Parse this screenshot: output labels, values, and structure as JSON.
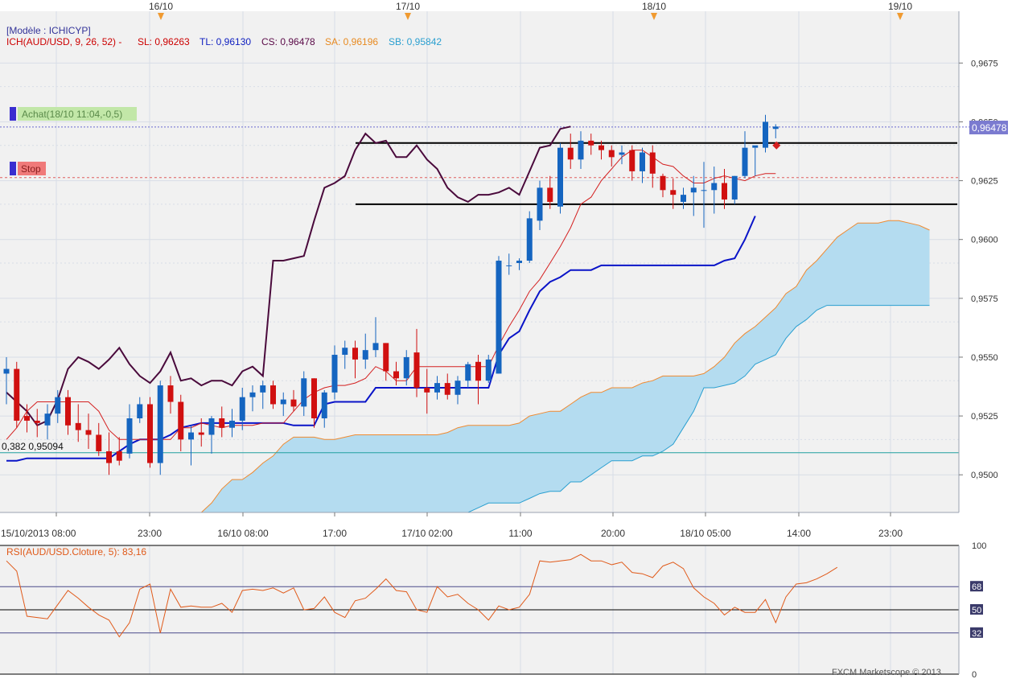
{
  "colors": {
    "background": "#f1f1f1",
    "grid": "#d8dde6",
    "up_candle": "#1565c0",
    "down_candle": "#d01010",
    "chikou": "#4a0a3c",
    "tenkan": "#d42020",
    "kijun": "#0a14c8",
    "senkou_a": "#f08a30",
    "senkou_b": "#2a9fd0",
    "cloud_fill": "#b4dcf0",
    "rsi_line": "#e05a1a",
    "fibo_line": "#20a0a0",
    "price_tag_bg": "#7b7bd0"
  },
  "header": {
    "model_label": "[Modèle : ICHICYP]",
    "ich_label": "ICH(AUD/USD, 9, 26, 52) -",
    "sl_label": "SL: 0,96263",
    "tl_label": "TL: 0,96130",
    "cs_label": "CS: 0,96478",
    "sa_label": "SA: 0,96196",
    "sb_label": "SB: 0,95842"
  },
  "orders": {
    "buy_label": "Achat(18/10 11:04,-0,5)",
    "stop_label": "Stop"
  },
  "fibo_label": "0,382 0,95094",
  "current_price_label": "0,96478",
  "top_dates": [
    "16/10",
    "17/10",
    "18/10",
    "19/10"
  ],
  "rsi_label": "RSI(AUD/USD.Cloture, 5): 83,16",
  "footer": "FXCM Marketscope © 2013",
  "chart_data": [
    {
      "type": "candlestick",
      "title": "ICH(AUD/USD, 9, 26, 52)",
      "x_tick_labels": [
        "15/10/2013 08:00",
        "23:00",
        "16/10 08:00",
        "17:00",
        "17/10 02:00",
        "11:00",
        "20:00",
        "18/10 05:00",
        "14:00",
        "23:00"
      ],
      "y_tick_labels": [
        "0,9675",
        "0,9650",
        "0,9625",
        "0,9600",
        "0,9575",
        "0,9550",
        "0,9525",
        "0,9500"
      ],
      "ylim": [
        0.9484,
        0.9697
      ],
      "candles": [
        {
          "o": 0.9543,
          "h": 0.955,
          "l": 0.953,
          "c": 0.9545
        },
        {
          "o": 0.9545,
          "h": 0.9548,
          "l": 0.952,
          "c": 0.9523
        },
        {
          "o": 0.9525,
          "h": 0.953,
          "l": 0.9518,
          "c": 0.9523
        },
        {
          "o": 0.9523,
          "h": 0.9528,
          "l": 0.9516,
          "c": 0.9522
        },
        {
          "o": 0.9521,
          "h": 0.953,
          "l": 0.9515,
          "c": 0.9526
        },
        {
          "o": 0.9526,
          "h": 0.9536,
          "l": 0.9522,
          "c": 0.9533
        },
        {
          "o": 0.9533,
          "h": 0.9536,
          "l": 0.9517,
          "c": 0.9521
        },
        {
          "o": 0.9522,
          "h": 0.953,
          "l": 0.9514,
          "c": 0.9519
        },
        {
          "o": 0.9519,
          "h": 0.9526,
          "l": 0.9511,
          "c": 0.9517
        },
        {
          "o": 0.9517,
          "h": 0.9522,
          "l": 0.9508,
          "c": 0.951
        },
        {
          "o": 0.951,
          "h": 0.9518,
          "l": 0.95,
          "c": 0.9505
        },
        {
          "o": 0.951,
          "h": 0.9516,
          "l": 0.9504,
          "c": 0.9506
        },
        {
          "o": 0.9509,
          "h": 0.953,
          "l": 0.9507,
          "c": 0.9524
        },
        {
          "o": 0.9524,
          "h": 0.9533,
          "l": 0.9522,
          "c": 0.953
        },
        {
          "o": 0.953,
          "h": 0.9533,
          "l": 0.9503,
          "c": 0.9505
        },
        {
          "o": 0.9505,
          "h": 0.954,
          "l": 0.95,
          "c": 0.9538
        },
        {
          "o": 0.9538,
          "h": 0.9542,
          "l": 0.9526,
          "c": 0.9531
        },
        {
          "o": 0.9531,
          "h": 0.9534,
          "l": 0.951,
          "c": 0.9515
        },
        {
          "o": 0.9515,
          "h": 0.9521,
          "l": 0.9504,
          "c": 0.9518
        },
        {
          "o": 0.9518,
          "h": 0.9524,
          "l": 0.9512,
          "c": 0.9517
        },
        {
          "o": 0.9517,
          "h": 0.9525,
          "l": 0.9509,
          "c": 0.9524
        },
        {
          "o": 0.9524,
          "h": 0.9529,
          "l": 0.9516,
          "c": 0.952
        },
        {
          "o": 0.952,
          "h": 0.9528,
          "l": 0.9516,
          "c": 0.9523
        },
        {
          "o": 0.9523,
          "h": 0.9537,
          "l": 0.9519,
          "c": 0.9533
        },
        {
          "o": 0.9533,
          "h": 0.9538,
          "l": 0.9527,
          "c": 0.9535
        },
        {
          "o": 0.9535,
          "h": 0.954,
          "l": 0.9528,
          "c": 0.9538
        },
        {
          "o": 0.9538,
          "h": 0.954,
          "l": 0.9528,
          "c": 0.953
        },
        {
          "o": 0.953,
          "h": 0.9535,
          "l": 0.9525,
          "c": 0.9532
        },
        {
          "o": 0.9532,
          "h": 0.9536,
          "l": 0.9527,
          "c": 0.9529
        },
        {
          "o": 0.9529,
          "h": 0.9544,
          "l": 0.9525,
          "c": 0.9541
        },
        {
          "o": 0.9541,
          "h": 0.9541,
          "l": 0.952,
          "c": 0.9524
        },
        {
          "o": 0.9524,
          "h": 0.9536,
          "l": 0.952,
          "c": 0.9535
        },
        {
          "o": 0.9535,
          "h": 0.9555,
          "l": 0.9532,
          "c": 0.9551
        },
        {
          "o": 0.9551,
          "h": 0.9557,
          "l": 0.9545,
          "c": 0.9554
        },
        {
          "o": 0.9554,
          "h": 0.9557,
          "l": 0.9541,
          "c": 0.9549
        },
        {
          "o": 0.9549,
          "h": 0.956,
          "l": 0.9545,
          "c": 0.9553
        },
        {
          "o": 0.9553,
          "h": 0.9567,
          "l": 0.955,
          "c": 0.9556
        },
        {
          "o": 0.9556,
          "h": 0.9556,
          "l": 0.954,
          "c": 0.9544
        },
        {
          "o": 0.9544,
          "h": 0.9548,
          "l": 0.9538,
          "c": 0.9541
        },
        {
          "o": 0.9541,
          "h": 0.9553,
          "l": 0.9538,
          "c": 0.955
        },
        {
          "o": 0.9552,
          "h": 0.9562,
          "l": 0.9533,
          "c": 0.9537
        },
        {
          "o": 0.9537,
          "h": 0.9545,
          "l": 0.9526,
          "c": 0.9535
        },
        {
          "o": 0.9535,
          "h": 0.9542,
          "l": 0.9532,
          "c": 0.9539
        },
        {
          "o": 0.9539,
          "h": 0.9543,
          "l": 0.9532,
          "c": 0.9534
        },
        {
          "o": 0.9534,
          "h": 0.9542,
          "l": 0.953,
          "c": 0.954
        },
        {
          "o": 0.954,
          "h": 0.9548,
          "l": 0.9537,
          "c": 0.9547
        },
        {
          "o": 0.9548,
          "h": 0.9551,
          "l": 0.953,
          "c": 0.954
        },
        {
          "o": 0.954,
          "h": 0.9551,
          "l": 0.9539,
          "c": 0.9549
        },
        {
          "o": 0.9543,
          "h": 0.9593,
          "l": 0.9543,
          "c": 0.9591
        },
        {
          "o": 0.9589,
          "h": 0.9594,
          "l": 0.9585,
          "c": 0.9589
        },
        {
          "o": 0.959,
          "h": 0.9592,
          "l": 0.9587,
          "c": 0.9591
        },
        {
          "o": 0.9591,
          "h": 0.9612,
          "l": 0.959,
          "c": 0.9609
        },
        {
          "o": 0.9608,
          "h": 0.9625,
          "l": 0.9604,
          "c": 0.9622
        },
        {
          "o": 0.9622,
          "h": 0.9627,
          "l": 0.9613,
          "c": 0.9616
        },
        {
          "o": 0.9614,
          "h": 0.9641,
          "l": 0.9611,
          "c": 0.9639
        },
        {
          "o": 0.9639,
          "h": 0.9645,
          "l": 0.963,
          "c": 0.9634
        },
        {
          "o": 0.9634,
          "h": 0.9646,
          "l": 0.963,
          "c": 0.9642
        },
        {
          "o": 0.9642,
          "h": 0.9645,
          "l": 0.9636,
          "c": 0.964
        },
        {
          "o": 0.964,
          "h": 0.9642,
          "l": 0.9634,
          "c": 0.9638
        },
        {
          "o": 0.9638,
          "h": 0.964,
          "l": 0.9631,
          "c": 0.9635
        },
        {
          "o": 0.9636,
          "h": 0.964,
          "l": 0.9632,
          "c": 0.9637
        },
        {
          "o": 0.9638,
          "h": 0.964,
          "l": 0.9625,
          "c": 0.9629
        },
        {
          "o": 0.9629,
          "h": 0.9639,
          "l": 0.9624,
          "c": 0.9637
        },
        {
          "o": 0.9637,
          "h": 0.964,
          "l": 0.9622,
          "c": 0.9628
        },
        {
          "o": 0.9627,
          "h": 0.9628,
          "l": 0.9618,
          "c": 0.9621
        },
        {
          "o": 0.9621,
          "h": 0.9626,
          "l": 0.9613,
          "c": 0.9619
        },
        {
          "o": 0.9616,
          "h": 0.9622,
          "l": 0.9613,
          "c": 0.9619
        },
        {
          "o": 0.962,
          "h": 0.9627,
          "l": 0.961,
          "c": 0.9622
        },
        {
          "o": 0.9621,
          "h": 0.9633,
          "l": 0.9605,
          "c": 0.9621
        },
        {
          "o": 0.9621,
          "h": 0.9631,
          "l": 0.9611,
          "c": 0.9624
        },
        {
          "o": 0.9624,
          "h": 0.963,
          "l": 0.9613,
          "c": 0.9617
        },
        {
          "o": 0.9617,
          "h": 0.9627,
          "l": 0.9615,
          "c": 0.9627
        },
        {
          "o": 0.9627,
          "h": 0.9646,
          "l": 0.9626,
          "c": 0.9639
        },
        {
          "o": 0.9639,
          "h": 0.9639,
          "l": 0.9627,
          "c": 0.964
        },
        {
          "o": 0.9639,
          "h": 0.9653,
          "l": 0.9637,
          "c": 0.965
        },
        {
          "o": 0.9647,
          "h": 0.9649,
          "l": 0.9643,
          "c": 0.9648
        }
      ],
      "tenkan_sen": [
        0.9515,
        0.952,
        0.9527,
        0.9531,
        0.9531,
        0.9531,
        0.9531,
        0.9531,
        0.9531,
        0.9527,
        0.9519,
        0.9515,
        0.9515,
        0.9515,
        0.9515,
        0.9515,
        0.9515,
        0.952,
        0.952,
        0.9522,
        0.9521,
        0.952,
        0.9521,
        0.9521,
        0.9521,
        0.9522,
        0.9522,
        0.9522,
        0.9527,
        0.9532,
        0.9535,
        0.9537,
        0.9538,
        0.9538,
        0.9539,
        0.9541,
        0.9546,
        0.9544,
        0.954,
        0.954,
        0.9546,
        0.9546,
        0.9546,
        0.9546,
        0.9546,
        0.9546,
        0.9546,
        0.9546,
        0.9555,
        0.9563,
        0.957,
        0.9578,
        0.9583,
        0.959,
        0.9597,
        0.9605,
        0.9615,
        0.9618,
        0.9625,
        0.963,
        0.9635,
        0.9638,
        0.9638,
        0.9635,
        0.9632,
        0.9631,
        0.9627,
        0.9624,
        0.9624,
        0.9626,
        0.9627,
        0.9626,
        0.9625,
        0.9627,
        0.9628,
        0.9628
      ],
      "kijun_sen": [
        0.9506,
        0.9506,
        0.9507,
        0.9507,
        0.9507,
        0.9507,
        0.9507,
        0.9507,
        0.9507,
        0.9507,
        0.9507,
        0.951,
        0.9513,
        0.9515,
        0.9515,
        0.9515,
        0.9517,
        0.952,
        0.9521,
        0.9522,
        0.9522,
        0.9522,
        0.9522,
        0.9522,
        0.9522,
        0.9522,
        0.9522,
        0.9522,
        0.9521,
        0.9521,
        0.9521,
        0.953,
        0.9531,
        0.9531,
        0.9531,
        0.9531,
        0.9537,
        0.9537,
        0.9537,
        0.9537,
        0.9537,
        0.9537,
        0.9537,
        0.9537,
        0.9537,
        0.9537,
        0.9537,
        0.9537,
        0.9551,
        0.9558,
        0.9561,
        0.957,
        0.9578,
        0.9582,
        0.9584,
        0.9587,
        0.9587,
        0.9587,
        0.9589,
        0.9589,
        0.9589,
        0.9589,
        0.9589,
        0.9589,
        0.9589,
        0.9589,
        0.9589,
        0.9589,
        0.9589,
        0.9589,
        0.9591,
        0.9592,
        0.96,
        0.961
      ],
      "chikou_span": [
        0.9535,
        0.9531,
        0.9527,
        0.9521,
        0.9523,
        0.9532,
        0.9545,
        0.955,
        0.9548,
        0.9545,
        0.9549,
        0.9554,
        0.9547,
        0.9542,
        0.9539,
        0.9544,
        0.9552,
        0.954,
        0.9541,
        0.9538,
        0.954,
        0.954,
        0.9538,
        0.9544,
        0.9546,
        0.9542,
        0.9591,
        0.9591,
        0.9592,
        0.9593,
        0.9608,
        0.9622,
        0.9624,
        0.9627,
        0.9638,
        0.9645,
        0.9641,
        0.9642,
        0.9635,
        0.9635,
        0.964,
        0.9634,
        0.963,
        0.9622,
        0.9618,
        0.9616,
        0.9619,
        0.9619,
        0.962,
        0.9622,
        0.9619,
        0.9629,
        0.9639,
        0.964,
        0.9647,
        0.9648
      ],
      "senkou_span_a": [
        0.9484,
        0.9488,
        0.9494,
        0.9498,
        0.9498,
        0.9501,
        0.9505,
        0.9508,
        0.9513,
        0.9516,
        0.9516,
        0.9516,
        0.9515,
        0.9515,
        0.9516,
        0.9517,
        0.9517,
        0.9517,
        0.9517,
        0.9517,
        0.9517,
        0.9517,
        0.9517,
        0.9517,
        0.9518,
        0.952,
        0.9521,
        0.9521,
        0.9521,
        0.9521,
        0.9521,
        0.9522,
        0.9525,
        0.9526,
        0.9527,
        0.9527,
        0.953,
        0.9533,
        0.9535,
        0.9535,
        0.9537,
        0.9537,
        0.9537,
        0.9539,
        0.954,
        0.9542,
        0.9542,
        0.9542,
        0.9542,
        0.9543,
        0.9546,
        0.955,
        0.9556,
        0.956,
        0.9563,
        0.9567,
        0.9571,
        0.9577,
        0.958,
        0.9587,
        0.9591,
        0.9596,
        0.9601,
        0.9604,
        0.9607,
        0.9607,
        0.9607,
        0.9608,
        0.9608,
        0.9607,
        0.9606,
        0.9604
      ],
      "senkou_span_b": [
        0.9484,
        0.9484,
        0.9484,
        0.9484,
        0.9484,
        0.9484,
        0.9484,
        0.9484,
        0.9484,
        0.9484,
        0.9484,
        0.9484,
        0.9484,
        0.9484,
        0.9484,
        0.9484,
        0.9484,
        0.9484,
        0.9484,
        0.9484,
        0.9484,
        0.9484,
        0.9484,
        0.9484,
        0.9484,
        0.9484,
        0.9484,
        0.9486,
        0.9488,
        0.9488,
        0.9488,
        0.9488,
        0.949,
        0.9492,
        0.9493,
        0.9493,
        0.9497,
        0.9497,
        0.95,
        0.9503,
        0.9506,
        0.9506,
        0.9506,
        0.9508,
        0.9508,
        0.951,
        0.9513,
        0.952,
        0.9527,
        0.9537,
        0.9537,
        0.9538,
        0.9539,
        0.9542,
        0.9547,
        0.9549,
        0.9551,
        0.9558,
        0.9563,
        0.9566,
        0.957,
        0.9572,
        0.9572,
        0.9572,
        0.9572,
        0.9572,
        0.9572,
        0.9572,
        0.9572,
        0.9572,
        0.9572,
        0.9572
      ],
      "fibonacci_level": 0.95094,
      "resistance_line": 0.9641,
      "support_line": 0.9615,
      "stop_level": 0.96263,
      "current_price": 0.96478
    },
    {
      "type": "line",
      "title": "RSI(AUD/USD.Cloture, 5)",
      "y_tick_labels": [
        "100",
        "68",
        "50",
        "32",
        "0"
      ],
      "ylim": [
        0,
        100
      ],
      "levels": [
        100,
        68,
        50,
        32,
        0
      ],
      "values": [
        88,
        80,
        45,
        44,
        43,
        54,
        65,
        59,
        52,
        46,
        42,
        29,
        40,
        66,
        70,
        32,
        66,
        52,
        53,
        52,
        52,
        55,
        48,
        65,
        66,
        65,
        67,
        63,
        67,
        50,
        51,
        60,
        48,
        44,
        57,
        59,
        66,
        74,
        65,
        64,
        50,
        48,
        68,
        60,
        62,
        55,
        50,
        42,
        53,
        50,
        52,
        62,
        88,
        87,
        88,
        89,
        93,
        88,
        88,
        85,
        87,
        79,
        78,
        75,
        84,
        87,
        82,
        67,
        60,
        55,
        46,
        52,
        48,
        48,
        58,
        40,
        60,
        70,
        71,
        74,
        78,
        83
      ]
    }
  ]
}
